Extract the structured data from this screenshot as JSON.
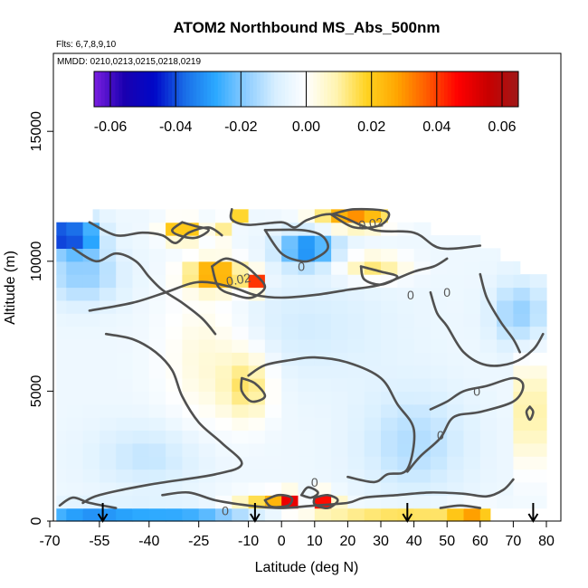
{
  "chart_data": {
    "type": "heatmap",
    "title": "ATOM2 Northbound MS_Abs_500nm",
    "subtitle_flights": "Flts: 6,7,8,9,10",
    "subtitle_dates": "MMDD: 0210,0213,0215,0218,0219",
    "xlabel": "Latitude (deg N)",
    "ylabel": "Altitude (m)",
    "xlim": [
      -70,
      82
    ],
    "ylim": [
      0,
      18000
    ],
    "x_ticks": [
      -70,
      -55,
      -40,
      -25,
      -10,
      0,
      10,
      20,
      30,
      40,
      50,
      60,
      70,
      80
    ],
    "y_ticks": [
      0,
      5000,
      10000,
      15000
    ],
    "colorbar": {
      "range": [
        -0.065,
        0.065
      ],
      "ticks": [
        -0.06,
        -0.04,
        -0.02,
        0.0,
        0.02,
        0.04,
        0.06
      ],
      "tick_labels": [
        "-0.06",
        "-0.04",
        "-0.02",
        "0.00",
        "0.02",
        "0.04",
        "0.06"
      ],
      "colors": [
        "#7b1fe0",
        "#1a00b0",
        "#0008c8",
        "#1a6ee8",
        "#2aa8ff",
        "#8cccff",
        "#d8efff",
        "#ffffff",
        "#fff4b0",
        "#ffd320",
        "#ffa500",
        "#ff5a00",
        "#ff0000",
        "#c80000",
        "#a01818"
      ]
    },
    "grid": {
      "lat_edges": [
        -68,
        -65,
        -60,
        -55,
        -50,
        -45,
        -40,
        -35,
        -30,
        -25,
        -20,
        -15,
        -10,
        -5,
        0,
        5,
        10,
        15,
        20,
        25,
        30,
        35,
        40,
        45,
        50,
        55,
        60,
        65,
        70,
        75,
        80
      ],
      "alt_edges": [
        0,
        500,
        1000,
        1500,
        2000,
        2500,
        3000,
        3500,
        4000,
        4500,
        5000,
        5500,
        6000,
        6500,
        7000,
        7500,
        8000,
        8500,
        9000,
        9500,
        10000,
        10500,
        11000,
        11500,
        12000
      ],
      "lat_coverage": [
        [
          -68,
          63
        ],
        [
          -68,
          82
        ],
        [
          -68,
          80
        ],
        [
          -68,
          80
        ],
        [
          -68,
          80
        ],
        [
          -68,
          80
        ],
        [
          -68,
          80
        ],
        [
          -68,
          80
        ],
        [
          -68,
          80
        ],
        [
          -68,
          80
        ],
        [
          -68,
          80
        ],
        [
          -68,
          80
        ],
        [
          -68,
          80
        ],
        [
          -68,
          80
        ],
        [
          -68,
          80
        ],
        [
          -68,
          80
        ],
        [
          -68,
          80
        ],
        [
          -68,
          80
        ],
        [
          -68,
          80
        ],
        [
          -68,
          72
        ],
        [
          -68,
          66
        ],
        [
          -70,
          60
        ],
        [
          -70,
          45
        ],
        [
          -57,
          32
        ]
      ],
      "background": -0.004,
      "features": [
        {
          "lat": -60,
          "alt": 200,
          "value": -0.024,
          "sx": 12,
          "sy": 250
        },
        {
          "lat": -30,
          "alt": 200,
          "value": -0.022,
          "sx": 15,
          "sy": 250
        },
        {
          "lat": 20,
          "alt": 200,
          "value": 0.012,
          "sx": 12,
          "sy": 250
        },
        {
          "lat": 42,
          "alt": 200,
          "value": 0.018,
          "sx": 12,
          "sy": 250
        },
        {
          "lat": 58,
          "alt": 200,
          "value": 0.026,
          "sx": 5,
          "sy": 250
        },
        {
          "lat": -5,
          "alt": 800,
          "value": 0.022,
          "sx": 7,
          "sy": 220
        },
        {
          "lat": 2,
          "alt": 800,
          "value": 0.045,
          "sx": 2.5,
          "sy": 220
        },
        {
          "lat": 7,
          "alt": 800,
          "value": -0.024,
          "sx": 2,
          "sy": 220
        },
        {
          "lat": 12,
          "alt": 800,
          "value": 0.05,
          "sx": 3,
          "sy": 220
        },
        {
          "lat": -40,
          "alt": 2500,
          "value": -0.008,
          "sx": 12,
          "sy": 900
        },
        {
          "lat": 40,
          "alt": 3000,
          "value": -0.01,
          "sx": 12,
          "sy": 1500
        },
        {
          "lat": -22,
          "alt": 6500,
          "value": 0.01,
          "sx": 10,
          "sy": 2000
        },
        {
          "lat": -10,
          "alt": 5200,
          "value": 0.016,
          "sx": 5,
          "sy": 900
        },
        {
          "lat": 75,
          "alt": 4200,
          "value": 0.022,
          "sx": 2.5,
          "sy": 1500
        },
        {
          "lat": 72,
          "alt": 8000,
          "value": -0.014,
          "sx": 6,
          "sy": 900
        },
        {
          "lat": -60,
          "alt": 9500,
          "value": -0.014,
          "sx": 8,
          "sy": 800
        },
        {
          "lat": 5,
          "alt": 7500,
          "value": -0.006,
          "sx": 20,
          "sy": 1500
        },
        {
          "lat": -20,
          "alt": 9500,
          "value": 0.035,
          "sx": 6,
          "sy": 400
        },
        {
          "lat": -8,
          "alt": 9200,
          "value": 0.045,
          "sx": 2,
          "sy": 250
        },
        {
          "lat": 28,
          "alt": 9800,
          "value": 0.018,
          "sx": 7,
          "sy": 350
        },
        {
          "lat": 8,
          "alt": 10500,
          "value": -0.03,
          "sx": 6,
          "sy": 450
        },
        {
          "lat": -30,
          "alt": 11200,
          "value": 0.03,
          "sx": 4,
          "sy": 300
        },
        {
          "lat": -18,
          "alt": 11200,
          "value": 0.015,
          "sx": 2,
          "sy": 300
        },
        {
          "lat": 22,
          "alt": 11700,
          "value": 0.035,
          "sx": 8,
          "sy": 300
        },
        {
          "lat": -60,
          "alt": 11000,
          "value": -0.028,
          "sx": 4,
          "sy": 500
        },
        {
          "lat": -65,
          "alt": 11000,
          "value": -0.055,
          "sx": 1.5,
          "sy": 400
        },
        {
          "lat": -13,
          "alt": 11900,
          "value": 0.03,
          "sx": 1.5,
          "sy": 200
        }
      ]
    },
    "contours": [
      {
        "level": "0.02",
        "points": [
          [
            -30,
            11500
          ],
          [
            -26,
            11350
          ],
          [
            -22,
            11200
          ],
          [
            -26,
            10900
          ],
          [
            -31,
            11000
          ],
          [
            -33,
            11200
          ],
          [
            -30,
            11500
          ]
        ]
      },
      {
        "level": "0.02",
        "points": [
          [
            -21,
            9800
          ],
          [
            -17,
            10100
          ],
          [
            -12,
            9900
          ],
          [
            -8,
            9500
          ],
          [
            -5,
            9000
          ],
          [
            -9,
            8600
          ],
          [
            -14,
            8700
          ],
          [
            -19,
            9000
          ],
          [
            -21,
            9800
          ]
        ]
      },
      {
        "level": "0.02",
        "points": [
          [
            -12,
            5500
          ],
          [
            -8,
            5300
          ],
          [
            -5,
            4800
          ],
          [
            -9,
            4600
          ],
          [
            -12,
            5000
          ],
          [
            -12,
            5500
          ]
        ]
      },
      {
        "level": "0.02",
        "points": [
          [
            15,
            11800
          ],
          [
            22,
            12000
          ],
          [
            32,
            11900
          ],
          [
            30,
            11400
          ],
          [
            22,
            11300
          ],
          [
            15,
            11800
          ]
        ]
      },
      {
        "level": "0.02",
        "points": [
          [
            24,
            9800
          ],
          [
            30,
            9600
          ],
          [
            35,
            9400
          ],
          [
            30,
            9100
          ],
          [
            25,
            9300
          ],
          [
            24,
            9800
          ]
        ]
      },
      {
        "level": "0.02",
        "points": [
          [
            -5,
            800
          ],
          [
            -1,
            1000
          ],
          [
            3,
            900
          ],
          [
            2,
            600
          ],
          [
            -3,
            550
          ],
          [
            -5,
            800
          ]
        ]
      },
      {
        "level": "0.02",
        "points": [
          [
            10,
            900
          ],
          [
            14,
            1000
          ],
          [
            17,
            800
          ],
          [
            14,
            500
          ],
          [
            10,
            650
          ],
          [
            10,
            900
          ]
        ]
      },
      {
        "level": "0.02",
        "points": [
          [
            75,
            4400
          ],
          [
            76,
            4200
          ],
          [
            75,
            3900
          ],
          [
            74,
            4200
          ],
          [
            75,
            4400
          ]
        ]
      },
      {
        "level": "0",
        "points": [
          [
            -15,
            12000
          ],
          [
            -15,
            11600
          ],
          [
            -10,
            11400
          ],
          [
            0,
            11500
          ],
          [
            4,
            11300
          ],
          [
            8,
            11600
          ],
          [
            16,
            11800
          ],
          [
            28,
            11200
          ],
          [
            40,
            11100
          ],
          [
            48,
            10500
          ],
          [
            60,
            10600
          ]
        ]
      },
      {
        "level": "0",
        "points": [
          [
            -58,
            11500
          ],
          [
            -50,
            11000
          ],
          [
            -42,
            11100
          ],
          [
            -36,
            11000
          ],
          [
            -32,
            10700
          ],
          [
            -28,
            11100
          ],
          [
            -22,
            11300
          ],
          [
            -18,
            11000
          ]
        ]
      },
      {
        "level": "0",
        "points": [
          [
            -63,
            10500
          ],
          [
            -56,
            10000
          ],
          [
            -50,
            10300
          ],
          [
            -44,
            10000
          ],
          [
            -40,
            9400
          ],
          [
            -36,
            8900
          ],
          [
            -30,
            8400
          ],
          [
            -24,
            7800
          ],
          [
            -20,
            7200
          ]
        ]
      },
      {
        "level": "0",
        "points": [
          [
            -5,
            11200
          ],
          [
            0,
            10300
          ],
          [
            6,
            10000
          ],
          [
            10,
            10100
          ],
          [
            14,
            10500
          ],
          [
            12,
            11000
          ],
          [
            6,
            11200
          ],
          [
            -5,
            11200
          ]
        ]
      },
      {
        "level": "0",
        "points": [
          [
            -58,
            8100
          ],
          [
            -45,
            8400
          ],
          [
            -35,
            8800
          ],
          [
            -25,
            9200
          ],
          [
            -15,
            9000
          ],
          [
            -8,
            8700
          ],
          [
            0,
            8600
          ],
          [
            10,
            8700
          ],
          [
            20,
            8900
          ],
          [
            30,
            9100
          ],
          [
            40,
            9600
          ],
          [
            46,
            9800
          ],
          [
            50,
            10100
          ]
        ]
      },
      {
        "level": "0",
        "points": [
          [
            -53,
            7200
          ],
          [
            -45,
            7000
          ],
          [
            -38,
            6500
          ],
          [
            -33,
            5800
          ],
          [
            -30,
            4800
          ],
          [
            -25,
            3800
          ],
          [
            -18,
            3000
          ],
          [
            -12,
            2200
          ],
          [
            -20,
            1800
          ],
          [
            -40,
            1400
          ],
          [
            -55,
            1000
          ],
          [
            -60,
            700
          ]
        ]
      },
      {
        "level": "0",
        "points": [
          [
            -10,
            5600
          ],
          [
            -5,
            6000
          ],
          [
            3,
            6200
          ],
          [
            10,
            6300
          ],
          [
            20,
            6100
          ],
          [
            30,
            5500
          ],
          [
            35,
            4500
          ],
          [
            40,
            3500
          ],
          [
            38,
            2000
          ],
          [
            32,
            1800
          ],
          [
            28,
            1500
          ],
          [
            20,
            1700
          ]
        ]
      },
      {
        "level": "0",
        "points": [
          [
            45,
            8800
          ],
          [
            47,
            8000
          ],
          [
            50,
            7500
          ],
          [
            55,
            6500
          ],
          [
            62,
            6000
          ],
          [
            70,
            6100
          ],
          [
            76,
            6600
          ],
          [
            79,
            7200
          ]
        ]
      },
      {
        "level": "0",
        "points": [
          [
            38,
            1900
          ],
          [
            42,
            2500
          ],
          [
            48,
            3200
          ],
          [
            52,
            4000
          ],
          [
            60,
            4200
          ],
          [
            70,
            4600
          ],
          [
            73,
            5200
          ],
          [
            70,
            5500
          ],
          [
            62,
            5200
          ],
          [
            55,
            5000
          ],
          [
            50,
            4600
          ],
          [
            45,
            4300
          ]
        ]
      },
      {
        "level": "0",
        "points": [
          [
            -36,
            1000
          ],
          [
            -28,
            1100
          ],
          [
            -20,
            800
          ],
          [
            -10,
            600
          ],
          [
            0,
            500
          ],
          [
            10,
            600
          ],
          [
            20,
            700
          ],
          [
            25,
            900
          ],
          [
            35,
            1000
          ],
          [
            45,
            1100
          ],
          [
            55,
            1050
          ],
          [
            62,
            950
          ],
          [
            67,
            1200
          ],
          [
            70,
            1600
          ]
        ]
      },
      {
        "level": "0",
        "points": [
          [
            -67,
            600
          ],
          [
            -63,
            900
          ],
          [
            -58,
            700
          ],
          [
            -50,
            500
          ]
        ]
      },
      {
        "level": "0",
        "points": [
          [
            48,
            500
          ],
          [
            54,
            600
          ],
          [
            60,
            500
          ]
        ]
      },
      {
        "level": "0",
        "points": [
          [
            6,
            1000
          ],
          [
            8,
            1300
          ],
          [
            11,
            1100
          ],
          [
            9,
            900
          ],
          [
            6,
            1000
          ]
        ]
      },
      {
        "level": "0",
        "points": [
          [
            60,
            9500
          ],
          [
            62,
            8600
          ],
          [
            66,
            7700
          ],
          [
            70,
            7000
          ],
          [
            72,
            6500
          ]
        ]
      }
    ],
    "contour_labels": [
      {
        "text": "0.02",
        "lat": 27,
        "alt": 11450,
        "angle": -8
      },
      {
        "text": "0.02",
        "lat": -13,
        "alt": 9300,
        "angle": -10
      },
      {
        "text": "0",
        "lat": 6,
        "alt": 9800,
        "angle": 0
      },
      {
        "text": "0",
        "lat": 39,
        "alt": 8700,
        "angle": 0
      },
      {
        "text": "0",
        "lat": 50,
        "alt": 8800,
        "angle": 0
      },
      {
        "text": "0",
        "lat": 59,
        "alt": 5000,
        "angle": 0
      },
      {
        "text": "0",
        "lat": 48,
        "alt": 3300,
        "angle": 0
      },
      {
        "text": "0",
        "lat": 10,
        "alt": 1500,
        "angle": 0
      },
      {
        "text": "0",
        "lat": -17,
        "alt": 400,
        "angle": 0
      }
    ],
    "profile_arrows_lat": [
      -54,
      -8,
      38,
      76
    ]
  }
}
